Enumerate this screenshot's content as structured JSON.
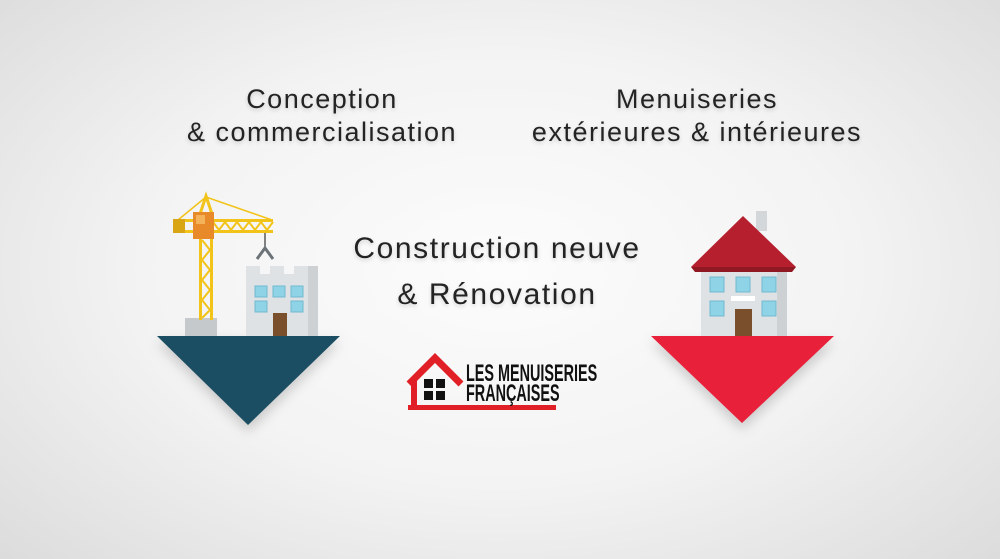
{
  "left_caption": {
    "line1": "Conception",
    "line2": "& commercialisation"
  },
  "right_caption": {
    "line1": "Menuiseries",
    "line2": "extérieures & intérieures"
  },
  "center_caption": {
    "line1": "Construction neuve",
    "line2": "& Rénovation"
  },
  "logo": {
    "line1": "LES MENUISERIES",
    "line2": "FRANÇAISES",
    "icon": "house-outline-icon",
    "color": "#e11f26"
  },
  "left_illustration": {
    "icons": [
      "crane-icon",
      "building-icon",
      "down-triangle-icon"
    ],
    "arrow_color": "#1c4e63"
  },
  "right_illustration": {
    "icons": [
      "house-icon",
      "down-triangle-icon"
    ],
    "arrow_color": "#e8203a"
  },
  "colors": {
    "text": "#232323",
    "crane_yellow": "#f2c318",
    "crane_cab": "#e8892a",
    "roof_red": "#b51f2e",
    "window_blue": "#8fd3e6",
    "door_brown": "#7a4f2c",
    "wall_gray": "#dfe2e5"
  }
}
